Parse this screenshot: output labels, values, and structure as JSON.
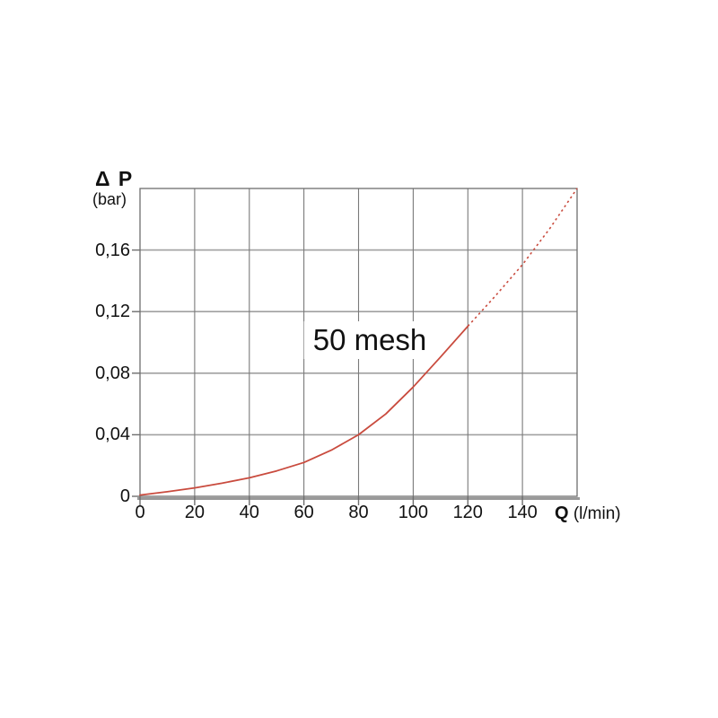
{
  "chart_data": {
    "type": "line",
    "title": "",
    "annotation": "50 mesh",
    "y_axis_title": "Δ P",
    "y_axis_unit": "(bar)",
    "x_axis_title": "Q",
    "x_axis_unit": "(l/min)",
    "xlabel": "Q (l/min)",
    "ylabel": "ΔP (bar)",
    "xlim": [
      0,
      160
    ],
    "ylim": [
      0,
      0.2
    ],
    "grid": true,
    "legend": "none",
    "x_ticks": [
      {
        "value": 0,
        "label": "0"
      },
      {
        "value": 20,
        "label": "20"
      },
      {
        "value": 40,
        "label": "40"
      },
      {
        "value": 60,
        "label": "60"
      },
      {
        "value": 80,
        "label": "80"
      },
      {
        "value": 100,
        "label": "100"
      },
      {
        "value": 120,
        "label": "120"
      },
      {
        "value": 140,
        "label": "140"
      }
    ],
    "y_ticks": [
      {
        "value": 0,
        "label": "0"
      },
      {
        "value": 0.04,
        "label": "0,04"
      },
      {
        "value": 0.08,
        "label": "0,08"
      },
      {
        "value": 0.12,
        "label": "0,12"
      },
      {
        "value": 0.16,
        "label": "0,16"
      }
    ],
    "colors": {
      "curve": "#c94b3e",
      "grid_vertical": "#7a7a7a",
      "grid_horizontal": "#a0a0a0",
      "border": "#6e6e6e",
      "axis": "#999999",
      "text": "#111111"
    },
    "series": [
      {
        "name": "50 mesh",
        "solid_until": 120,
        "points": [
          [
            0,
            0.0008
          ],
          [
            10,
            0.003
          ],
          [
            20,
            0.0055
          ],
          [
            30,
            0.0085
          ],
          [
            40,
            0.012
          ],
          [
            50,
            0.0165
          ],
          [
            60,
            0.022
          ],
          [
            70,
            0.03
          ],
          [
            80,
            0.04
          ],
          [
            90,
            0.0535
          ],
          [
            100,
            0.071
          ],
          [
            110,
            0.0905
          ],
          [
            120,
            0.1105
          ],
          [
            130,
            0.13
          ],
          [
            140,
            0.1505
          ],
          [
            150,
            0.174
          ],
          [
            160,
            0.2
          ]
        ]
      }
    ]
  }
}
